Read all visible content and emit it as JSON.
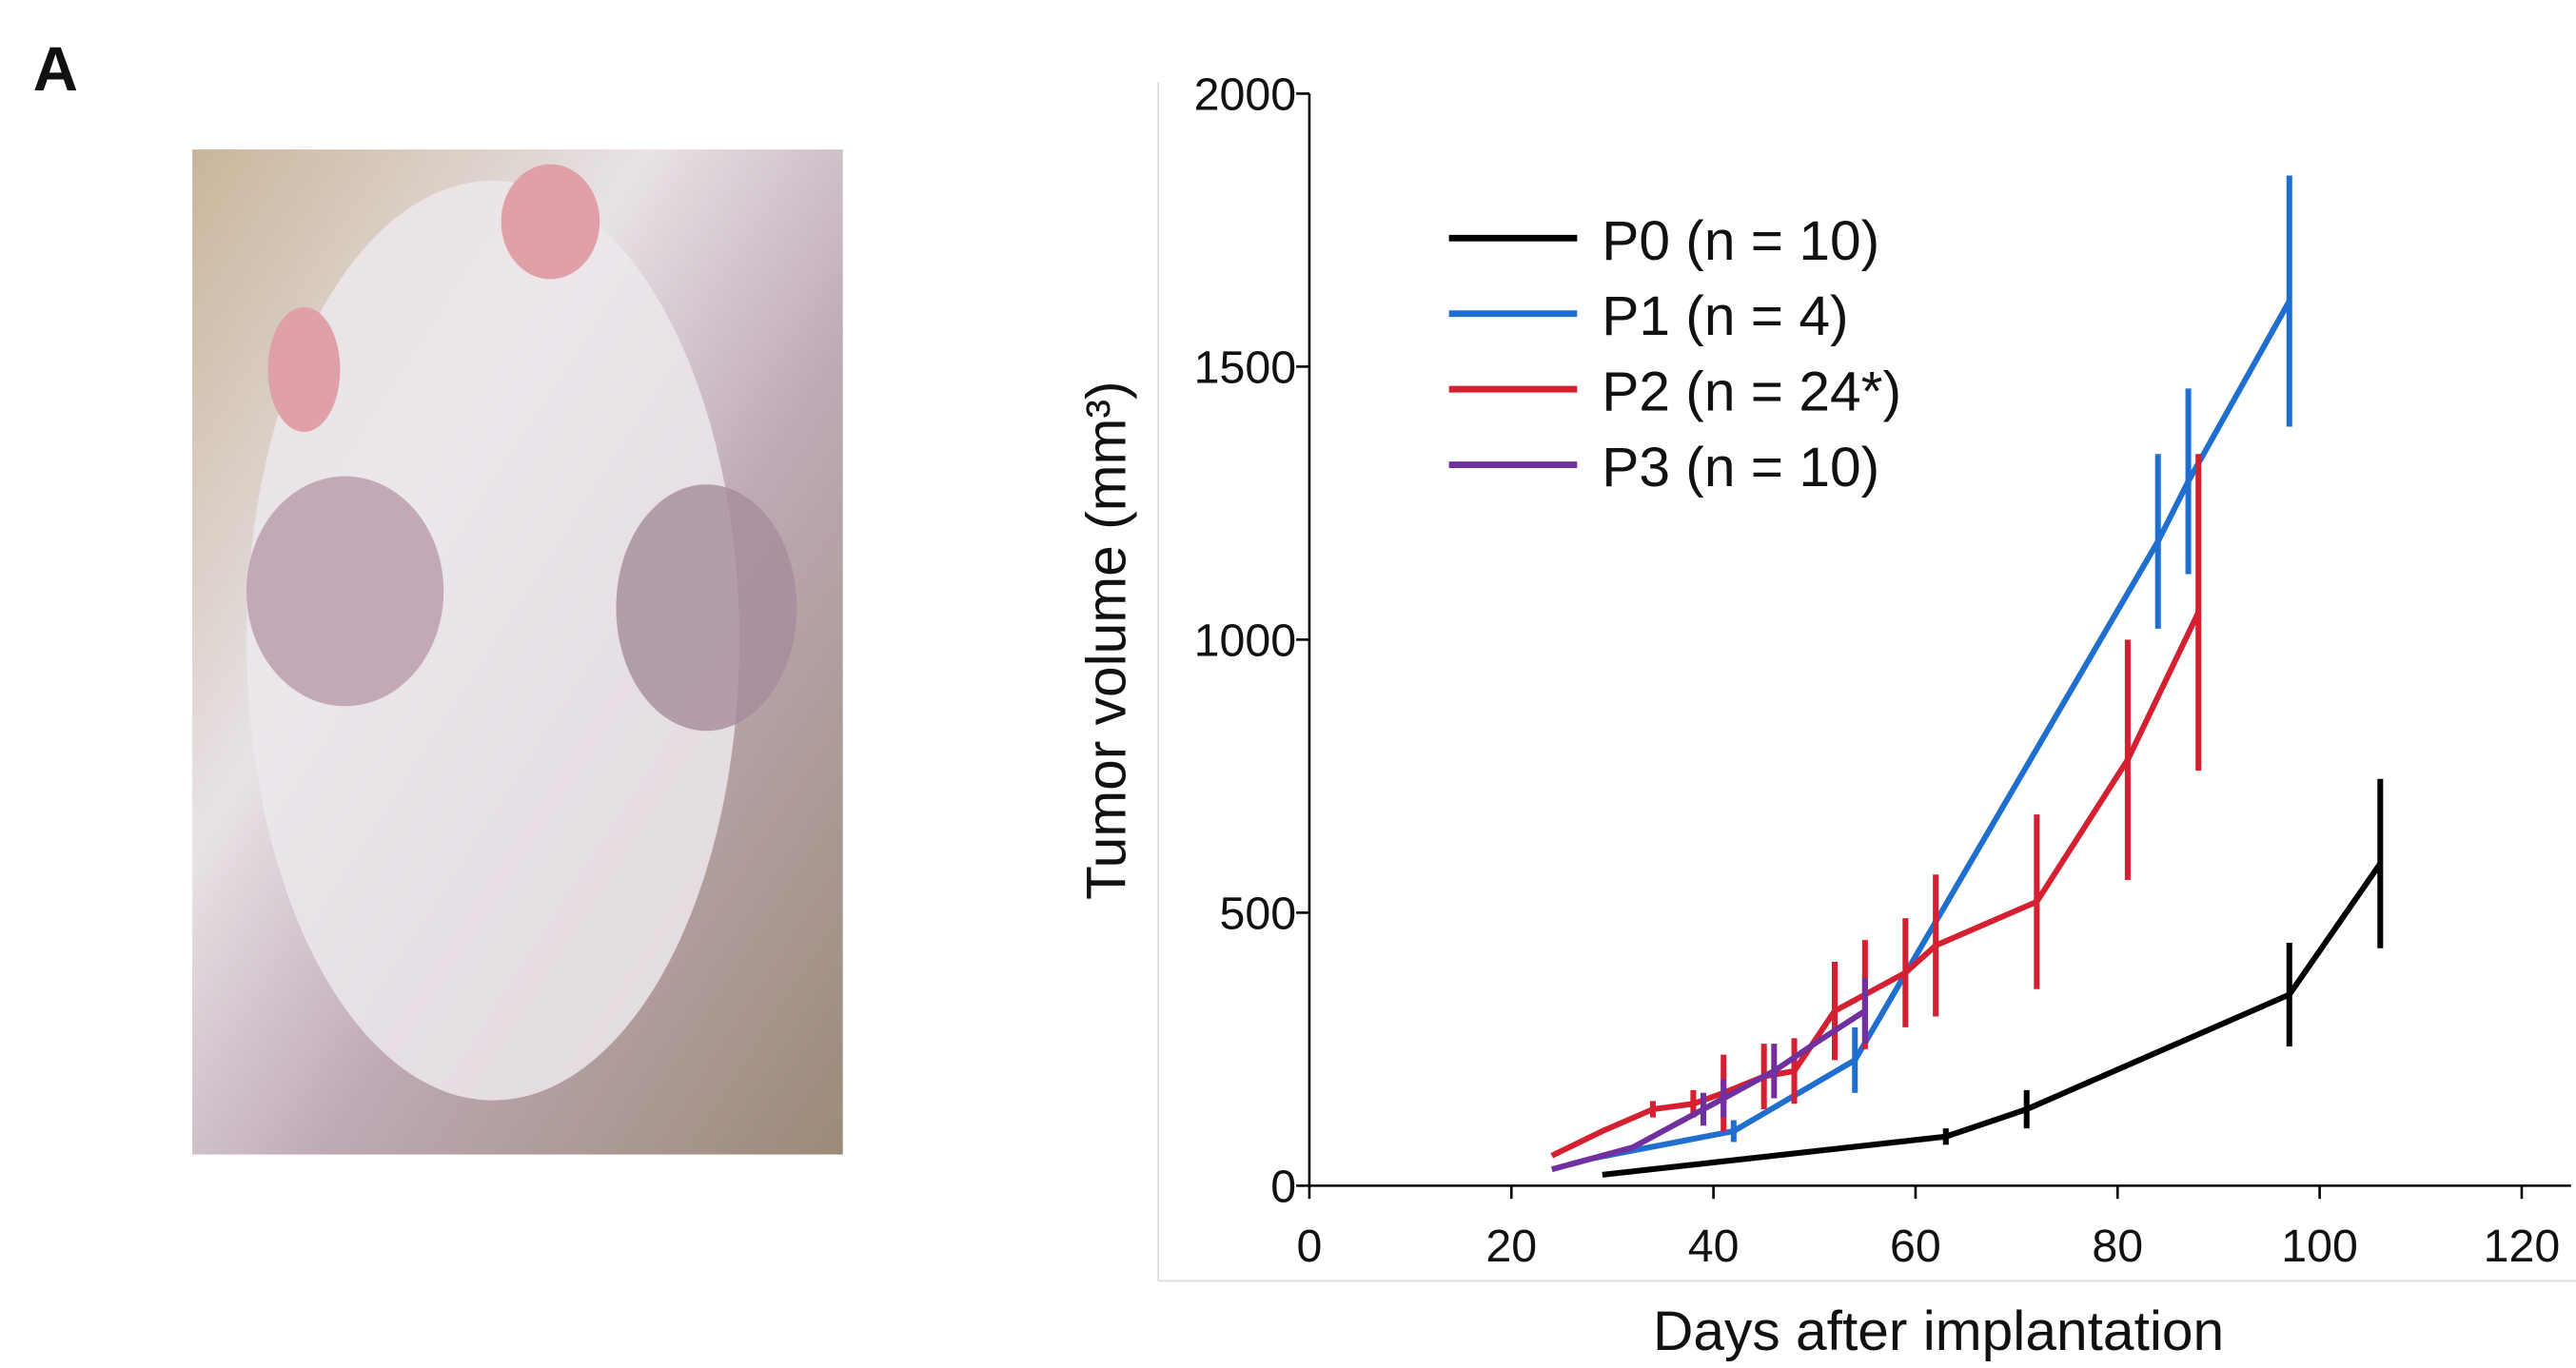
{
  "panel_label": "A",
  "chart_data": {
    "type": "line",
    "xlabel": "Days after implantation",
    "ylabel": "Tumor volume (mm³)",
    "xlim": [
      0,
      120
    ],
    "xticks": [
      0,
      20,
      40,
      60,
      80,
      100,
      120
    ],
    "ylim": [
      0,
      2000
    ],
    "yticks": [
      0,
      500,
      1000,
      1500,
      2000
    ],
    "legend": "upper-left",
    "series": [
      {
        "name": "P0 (n = 10)",
        "color": "#000000",
        "x": [
          29,
          63,
          71,
          97,
          106
        ],
        "values": [
          20,
          90,
          140,
          350,
          590
        ],
        "errors": [
          null,
          15,
          35,
          95,
          155
        ]
      },
      {
        "name": "P1 (n = 4)",
        "color": "#1f6fd1",
        "x": [
          28,
          42,
          54,
          84,
          87,
          97
        ],
        "values": [
          50,
          100,
          230,
          1180,
          1290,
          1620
        ],
        "errors": [
          null,
          20,
          60,
          160,
          170,
          230
        ]
      },
      {
        "name": "P2 (n = 24*)",
        "color": "#d42030",
        "x": [
          24,
          29,
          34,
          38,
          41,
          45,
          48,
          52,
          55,
          59,
          62,
          72,
          81,
          88
        ],
        "values": [
          55,
          100,
          140,
          150,
          170,
          200,
          210,
          320,
          350,
          390,
          440,
          520,
          780,
          1050
        ],
        "errors": [
          null,
          null,
          15,
          25,
          70,
          60,
          60,
          90,
          100,
          100,
          130,
          160,
          220,
          290
        ]
      },
      {
        "name": "P3 (n = 10)",
        "color": "#7030a0",
        "x": [
          24,
          32,
          39,
          41,
          46,
          50,
          55
        ],
        "values": [
          30,
          70,
          140,
          160,
          210,
          260,
          320
        ],
        "errors": [
          null,
          null,
          30,
          35,
          50,
          null,
          60
        ]
      }
    ]
  }
}
